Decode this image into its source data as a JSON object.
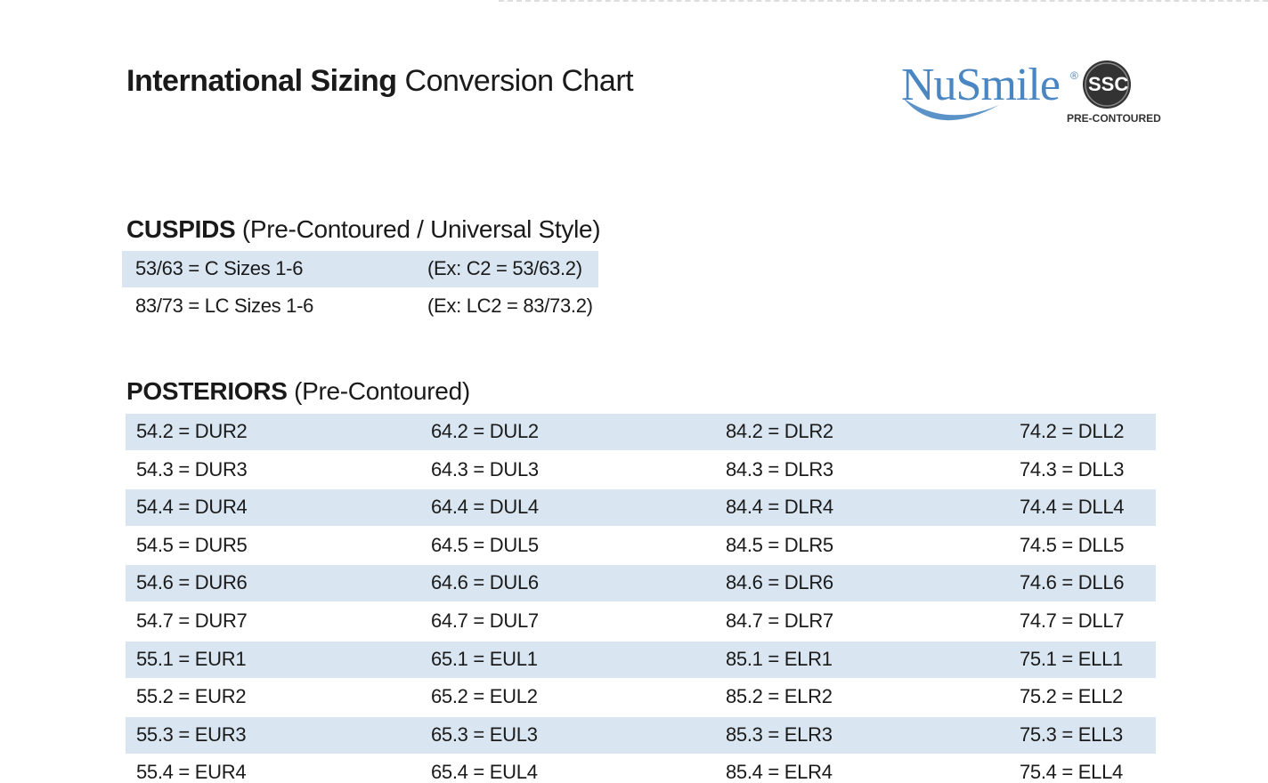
{
  "header": {
    "title_bold": "International Sizing",
    "title_rest": "Conversion Chart"
  },
  "logo": {
    "brand": "NuSmile",
    "registered": "®",
    "badge": "SSC",
    "tagline": "PRE-CONTOURED"
  },
  "cuspids": {
    "heading": "CUSPIDS",
    "subheading": "(Pre-Contoured / Universal Style)",
    "rows": [
      [
        "53/63 = C Sizes 1-6",
        "(Ex: C2 = 53/63.2)"
      ],
      [
        "83/73 = LC Sizes 1-6",
        "(Ex: LC2 = 83/73.2)"
      ]
    ]
  },
  "posteriors": {
    "heading": "POSTERIORS",
    "subheading": "(Pre-Contoured)",
    "rows": [
      [
        "54.2 = DUR2",
        "64.2 = DUL2",
        "84.2 = DLR2",
        "74.2 = DLL2"
      ],
      [
        "54.3 = DUR3",
        "64.3 = DUL3",
        "84.3 = DLR3",
        "74.3 = DLL3"
      ],
      [
        "54.4 = DUR4",
        "64.4 = DUL4",
        "84.4 = DLR4",
        "74.4 = DLL4"
      ],
      [
        "54.5 = DUR5",
        "64.5 = DUL5",
        "84.5 = DLR5",
        "74.5 = DLL5"
      ],
      [
        "54.6 = DUR6",
        "64.6 = DUL6",
        "84.6 = DLR6",
        "74.6 = DLL6"
      ],
      [
        "54.7 = DUR7",
        "64.7 = DUL7",
        "84.7 = DLR7",
        "74.7 = DLL7"
      ],
      [
        "55.1 = EUR1",
        "65.1 = EUL1",
        "85.1 = ELR1",
        "75.1 = ELL1"
      ],
      [
        "55.2 = EUR2",
        "65.2 = EUL2",
        "85.2 = ELR2",
        "75.2 = ELL2"
      ],
      [
        "55.3 = EUR3",
        "65.3 = EUL3",
        "85.3 = ELR3",
        "75.3 = ELL3"
      ],
      [
        "55.4 = EUR4",
        "65.4 = EUL4",
        "85.4 = ELR4",
        "75.4 = ELL4"
      ]
    ]
  }
}
